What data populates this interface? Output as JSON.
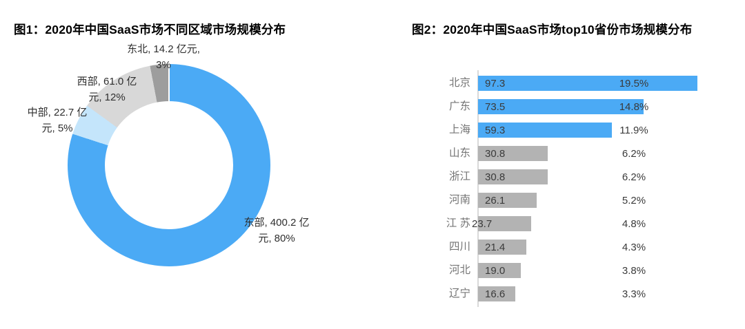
{
  "chart_data": [
    {
      "type": "pie",
      "subtype": "donut",
      "title": "图1：2020年中国SaaS市场不同区域市场规模分布",
      "unit": "亿元",
      "legend_position": "none",
      "slices": [
        {
          "name": "东部",
          "value": 400.2,
          "pct": 80,
          "color": "#4BAAF5",
          "label_lines": [
            "东部, 400.2 亿",
            "元, 80%"
          ]
        },
        {
          "name": "中部",
          "value": 22.7,
          "pct": 5,
          "color": "#C4E5FB",
          "label_lines": [
            "中部, 22.7 亿",
            "元, 5%"
          ]
        },
        {
          "name": "西部",
          "value": 61.0,
          "pct": 12,
          "color": "#D8D8D8",
          "label_lines": [
            "西部, 61.0 亿",
            "元, 12%"
          ]
        },
        {
          "name": "东北",
          "value": 14.2,
          "pct": 3,
          "color": "#9D9D9D",
          "label_lines": [
            "东北, 14.2 亿元,",
            "3%"
          ]
        }
      ]
    },
    {
      "type": "bar",
      "orientation": "horizontal",
      "title": "图2：2020年中国SaaS市场top10省份市场规模分布",
      "unit": "亿元",
      "grid": false,
      "xlim": [
        0,
        100
      ],
      "categories": [
        "北京",
        "广东",
        "上海",
        "山东",
        "浙江",
        "河南",
        "江 苏",
        "四川",
        "河北",
        "辽宁"
      ],
      "values": [
        97.3,
        73.5,
        59.3,
        30.8,
        30.8,
        26.1,
        23.7,
        21.4,
        19.0,
        16.6
      ],
      "pct_labels": [
        "19.5%",
        "14.8%",
        "11.9%",
        "6.2%",
        "6.2%",
        "5.2%",
        "4.8%",
        "4.3%",
        "3.8%",
        "3.3%"
      ],
      "value_labels": [
        "97.3",
        "73.5",
        "59.3",
        "30.8",
        "30.8",
        "26.1",
        "23.7",
        "21.4",
        "19.0",
        "16.6"
      ],
      "highlighted": [
        true,
        true,
        true,
        false,
        false,
        false,
        false,
        false,
        false,
        false
      ],
      "value_label_outside": [
        false,
        false,
        false,
        false,
        false,
        false,
        true,
        false,
        false,
        false
      ],
      "colors": {
        "highlight": "#4BAAF5",
        "normal": "#B3B3B3",
        "axis": "#D9D9D9"
      }
    }
  ]
}
